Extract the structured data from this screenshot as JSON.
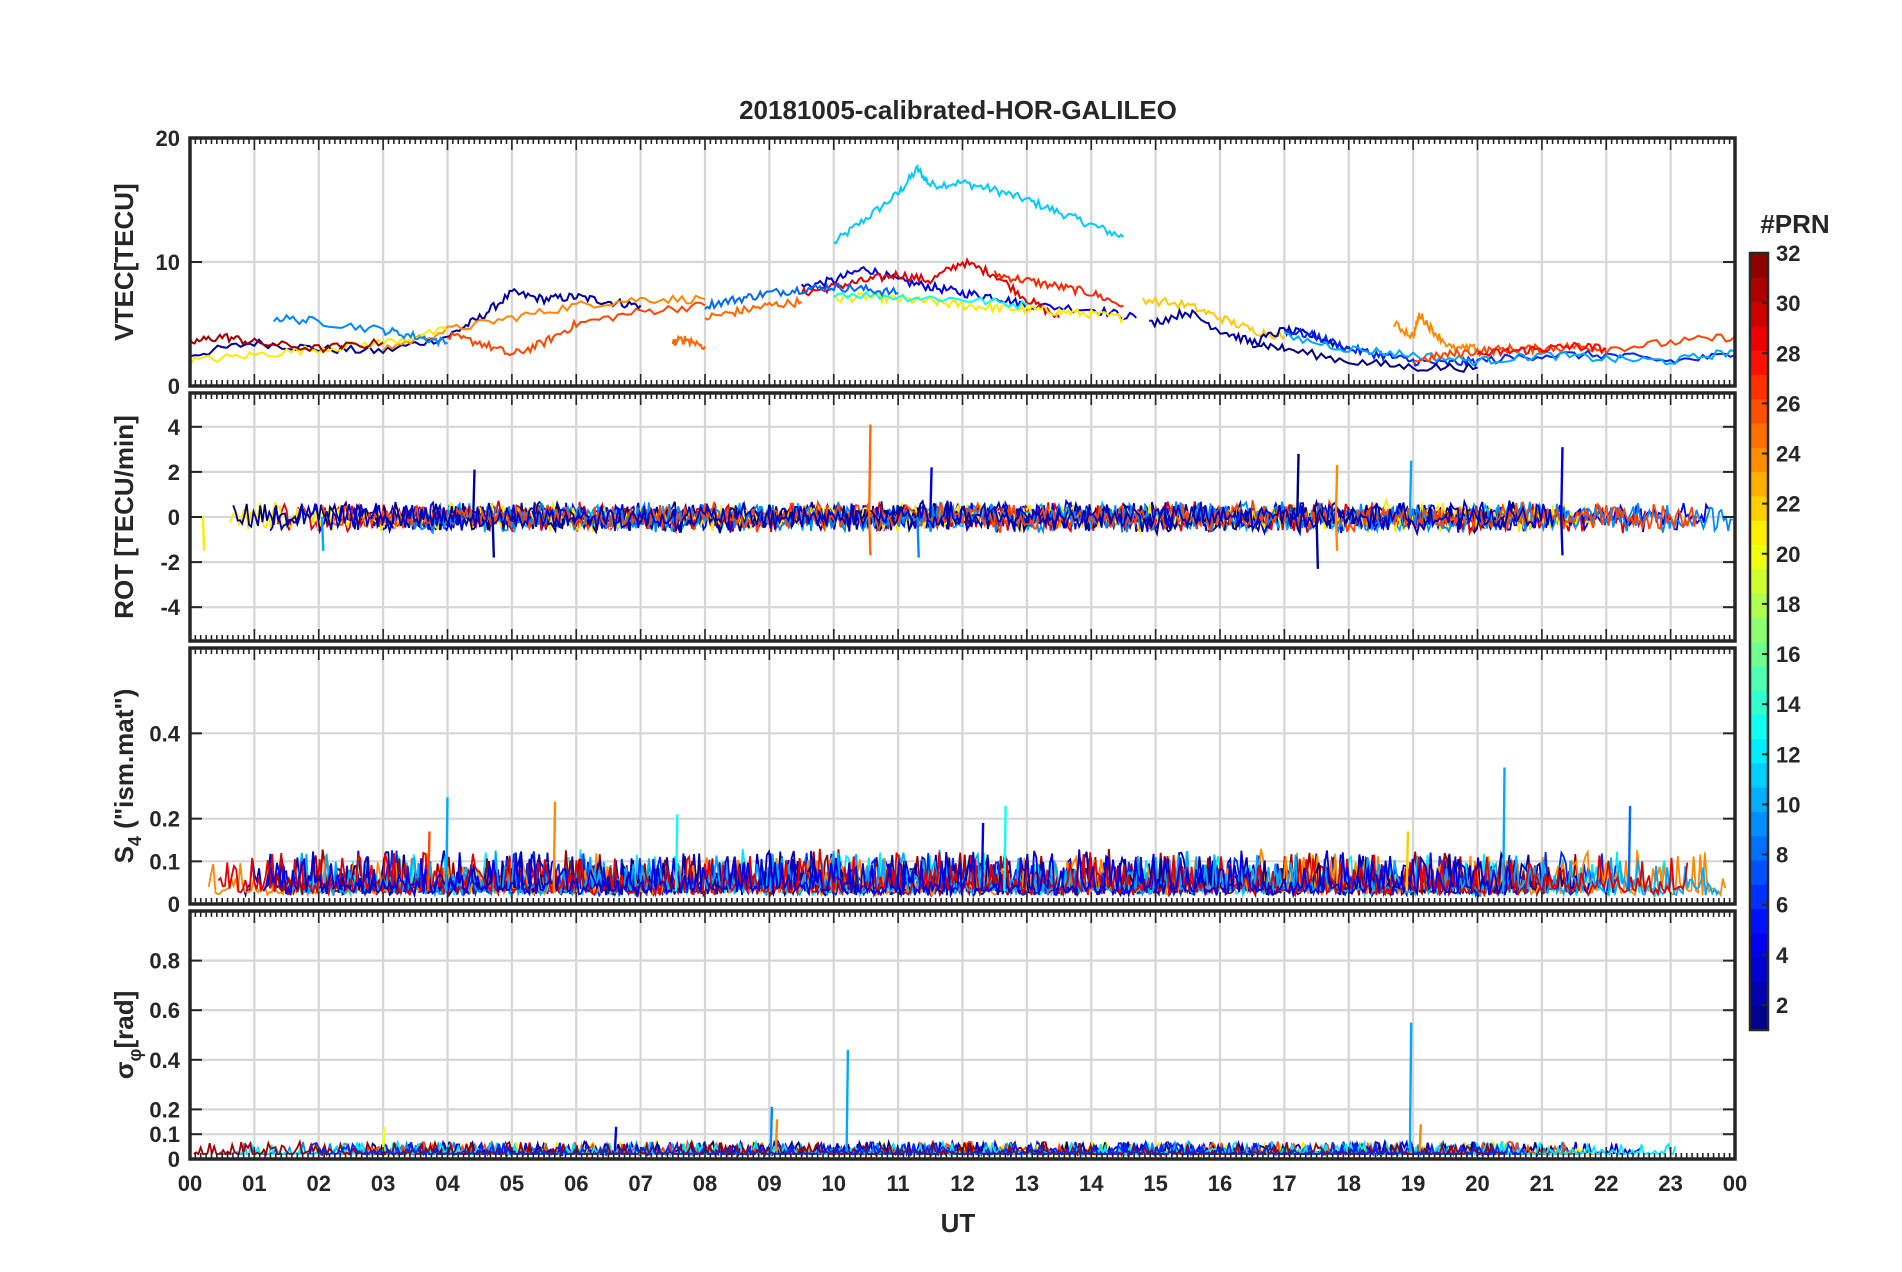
{
  "chart_data": {
    "type": "line",
    "title": "20181005-calibrated-HOR-GALILEO",
    "xlabel": "UT",
    "x_ticks": [
      "00",
      "01",
      "02",
      "03",
      "04",
      "05",
      "06",
      "07",
      "08",
      "09",
      "10",
      "11",
      "12",
      "13",
      "14",
      "15",
      "16",
      "17",
      "18",
      "19",
      "20",
      "21",
      "22",
      "23",
      "00"
    ],
    "xlim": [
      0,
      24
    ],
    "panels": [
      {
        "name": "vtec",
        "ylabel": "VTEC[TECU]",
        "ylim": [
          0,
          20
        ],
        "yticks": [
          0,
          10,
          20
        ],
        "series": [
          {
            "prn": 11,
            "x": [
              10.0,
              10.5,
              11.0,
              11.3,
              11.5,
              12.0,
              12.5,
              13.0,
              13.5,
              14.0,
              14.5
            ],
            "y": [
              11.5,
              13.5,
              15.5,
              17.5,
              16.2,
              16.4,
              15.8,
              15.0,
              14.0,
              13.0,
              12.0
            ]
          },
          {
            "prn": 2,
            "x": [
              0.0,
              1.0,
              2.0,
              3.0,
              4.0,
              4.5,
              5.0,
              5.5,
              6.0,
              6.5,
              7.0
            ],
            "y": [
              2.5,
              3.5,
              3.0,
              2.8,
              4.0,
              5.5,
              7.5,
              7.0,
              7.2,
              6.8,
              6.5
            ]
          },
          {
            "prn": 4,
            "x": [
              9.5,
              10.0,
              10.5,
              11.0,
              11.5,
              12.0,
              12.5,
              13.0,
              14.0,
              14.7
            ],
            "y": [
              8.0,
              8.5,
              9.5,
              8.5,
              8.0,
              7.5,
              7.2,
              6.5,
              6.2,
              5.5
            ]
          },
          {
            "prn": 29,
            "x": [
              9.5,
              10.0,
              10.5,
              11.0,
              11.5,
              12.0,
              12.5,
              13.0,
              13.5
            ],
            "y": [
              7.5,
              8.0,
              8.5,
              9.0,
              8.5,
              10.0,
              9.0,
              7.0,
              5.5
            ]
          },
          {
            "prn": 27,
            "x": [
              12.5,
              13.0,
              13.5,
              14.0,
              14.5
            ],
            "y": [
              9.0,
              8.5,
              8.0,
              7.5,
              6.5
            ]
          },
          {
            "prn": 21,
            "x": [
              10.0,
              10.5,
              11.0,
              11.5,
              12.0,
              12.5,
              13.0,
              13.5,
              14.0,
              14.5
            ],
            "y": [
              7.0,
              7.2,
              7.0,
              6.8,
              6.5,
              6.3,
              6.2,
              6.0,
              5.8,
              5.5
            ]
          },
          {
            "prn": 13,
            "x": [
              10.0,
              11.0,
              12.0,
              13.0
            ],
            "y": [
              7.5,
              7.2,
              7.0,
              6.5
            ]
          },
          {
            "prn": 8,
            "x": [
              8.0,
              8.5,
              9.0,
              9.5,
              10.0,
              10.5,
              11.0
            ],
            "y": [
              6.5,
              7.0,
              7.5,
              7.8,
              8.0,
              7.8,
              7.5
            ]
          },
          {
            "prn": 24,
            "x": [
              3.0,
              4.0,
              5.0,
              6.0,
              7.0,
              8.0
            ],
            "y": [
              3.0,
              4.5,
              5.5,
              6.5,
              7.0,
              7.0
            ]
          },
          {
            "prn": 26,
            "x": [
              4.0,
              4.5,
              5.0,
              5.5,
              6.0,
              7.0,
              8.0
            ],
            "y": [
              4.0,
              3.5,
              2.5,
              3.5,
              5.0,
              6.0,
              6.5
            ]
          },
          {
            "prn": 25,
            "x": [
              8.0,
              8.5,
              9.0,
              9.5
            ],
            "y": [
              5.5,
              6.0,
              6.5,
              6.8
            ]
          },
          {
            "prn": 21,
            "x": [
              0.0,
              1.0,
              2.0,
              3.0,
              4.0
            ],
            "y": [
              2.0,
              2.5,
              3.0,
              3.5,
              4.5
            ]
          },
          {
            "prn": 31,
            "x": [
              0.0,
              0.5,
              1.0,
              2.0,
              3.0
            ],
            "y": [
              3.5,
              4.0,
              3.5,
              3.0,
              3.5
            ]
          },
          {
            "prn": 9,
            "x": [
              1.3,
              2.0,
              3.0,
              3.5,
              4.0
            ],
            "y": [
              5.5,
              5.2,
              4.5,
              4.0,
              3.5
            ]
          },
          {
            "prn": 22,
            "x": [
              14.8,
              15.5,
              16.0,
              16.5,
              17.0
            ],
            "y": [
              7.0,
              6.5,
              5.5,
              4.5,
              4.0
            ]
          },
          {
            "prn": 2,
            "x": [
              14.9,
              15.5,
              16.0,
              16.5,
              17.0,
              17.5,
              18.0
            ],
            "y": [
              5.0,
              6.0,
              4.5,
              3.5,
              4.5,
              4.0,
              3.0
            ]
          },
          {
            "prn": 6,
            "x": [
              17.0,
              17.5,
              18.0,
              18.5,
              19.0,
              19.5,
              20.0,
              21.0,
              22.0,
              23.0,
              24.0
            ],
            "y": [
              4.5,
              4.0,
              3.0,
              2.5,
              2.0,
              1.8,
              2.0,
              2.5,
              2.5,
              2.0,
              2.5
            ]
          },
          {
            "prn": 1,
            "x": [
              16.5,
              17.0,
              18.0,
              19.0,
              20.0
            ],
            "y": [
              3.5,
              3.0,
              2.0,
              1.5,
              1.5
            ]
          },
          {
            "prn": 10,
            "x": [
              17.0,
              18.0,
              19.0,
              20.0,
              21.0,
              22.0,
              23.0,
              24.0
            ],
            "y": [
              4.0,
              3.0,
              2.5,
              2.0,
              2.5,
              2.2,
              2.0,
              2.8
            ]
          },
          {
            "prn": 24,
            "x": [
              18.7,
              19.0,
              19.1,
              19.3,
              19.6,
              20.0
            ],
            "y": [
              5.0,
              4.0,
              5.8,
              4.5,
              3.0,
              3.0
            ]
          },
          {
            "prn": 26,
            "x": [
              19.0,
              19.5,
              20.0,
              20.5,
              21.0,
              21.5,
              22.0,
              23.0,
              24.0
            ],
            "y": [
              2.0,
              2.5,
              2.8,
              3.0,
              3.0,
              3.2,
              3.0,
              3.5,
              4.0
            ]
          },
          {
            "prn": 28,
            "x": [
              20.0,
              20.5,
              21.0,
              21.5,
              22.0
            ],
            "y": [
              2.5,
              2.8,
              3.0,
              3.2,
              3.0
            ]
          },
          {
            "prn": 25,
            "x": [
              7.5,
              7.7,
              8.0
            ],
            "y": [
              3.5,
              3.8,
              3.2
            ]
          }
        ]
      },
      {
        "name": "rot",
        "ylabel": "ROT [TECU/min]",
        "ylim": [
          -5.5,
          5.5
        ],
        "yticks": [
          -4,
          -2,
          0,
          2,
          4
        ],
        "spikes": [
          {
            "prn": 25,
            "x": 10.55,
            "y": 4.1
          },
          {
            "prn": 25,
            "x": 10.55,
            "y": -1.7
          },
          {
            "prn": 4,
            "x": 11.5,
            "y": 2.2
          },
          {
            "prn": 9,
            "x": 11.3,
            "y": -1.8
          },
          {
            "prn": 1,
            "x": 17.2,
            "y": 2.8
          },
          {
            "prn": 2,
            "x": 17.5,
            "y": -2.3
          },
          {
            "prn": 24,
            "x": 17.8,
            "y": 2.3
          },
          {
            "prn": 24,
            "x": 17.8,
            "y": -1.5
          },
          {
            "prn": 10,
            "x": 18.95,
            "y": 2.5
          },
          {
            "prn": 4,
            "x": 21.3,
            "y": 3.1
          },
          {
            "prn": 3,
            "x": 21.3,
            "y": -1.7
          },
          {
            "prn": 2,
            "x": 4.4,
            "y": 2.1
          },
          {
            "prn": 2,
            "x": 4.7,
            "y": -1.8
          },
          {
            "prn": 10,
            "x": 2.05,
            "y": -1.5
          },
          {
            "prn": 21,
            "x": 0.2,
            "y": -1.5
          }
        ]
      },
      {
        "name": "s4",
        "ylabel": "S4 (\"ism.mat\")",
        "ylim": [
          0,
          0.6
        ],
        "yticks": [
          0,
          0.1,
          0.2,
          0.4
        ],
        "spikes": [
          {
            "prn": 10,
            "x": 3.98,
            "y": 0.25
          },
          {
            "prn": 24,
            "x": 5.65,
            "y": 0.24
          },
          {
            "prn": 13,
            "x": 7.55,
            "y": 0.21
          },
          {
            "prn": 13,
            "x": 12.65,
            "y": 0.23
          },
          {
            "prn": 10,
            "x": 20.4,
            "y": 0.32
          },
          {
            "prn": 8,
            "x": 22.35,
            "y": 0.23
          },
          {
            "prn": 26,
            "x": 3.7,
            "y": 0.17
          },
          {
            "prn": 4,
            "x": 12.3,
            "y": 0.19
          },
          {
            "prn": 22,
            "x": 18.9,
            "y": 0.17
          }
        ]
      },
      {
        "name": "sigma_phi",
        "ylabel": "σφ[rad]",
        "ylim": [
          0,
          1.0
        ],
        "yticks": [
          0,
          0.1,
          0.2,
          0.4,
          0.6,
          0.8
        ],
        "spikes": [
          {
            "prn": 10,
            "x": 10.2,
            "y": 0.44
          },
          {
            "prn": 10,
            "x": 18.95,
            "y": 0.55
          },
          {
            "prn": 9,
            "x": 9.02,
            "y": 0.21
          },
          {
            "prn": 24,
            "x": 9.1,
            "y": 0.16
          },
          {
            "prn": 4,
            "x": 6.6,
            "y": 0.13
          },
          {
            "prn": 20,
            "x": 3.0,
            "y": 0.13
          },
          {
            "prn": 24,
            "x": 19.1,
            "y": 0.14
          }
        ]
      }
    ],
    "colorbar": {
      "label": "#PRN",
      "range": [
        1,
        32
      ],
      "ticks": [
        2,
        4,
        6,
        8,
        10,
        12,
        14,
        16,
        18,
        20,
        22,
        24,
        26,
        28,
        30,
        32
      ],
      "colormap": "jet"
    }
  }
}
